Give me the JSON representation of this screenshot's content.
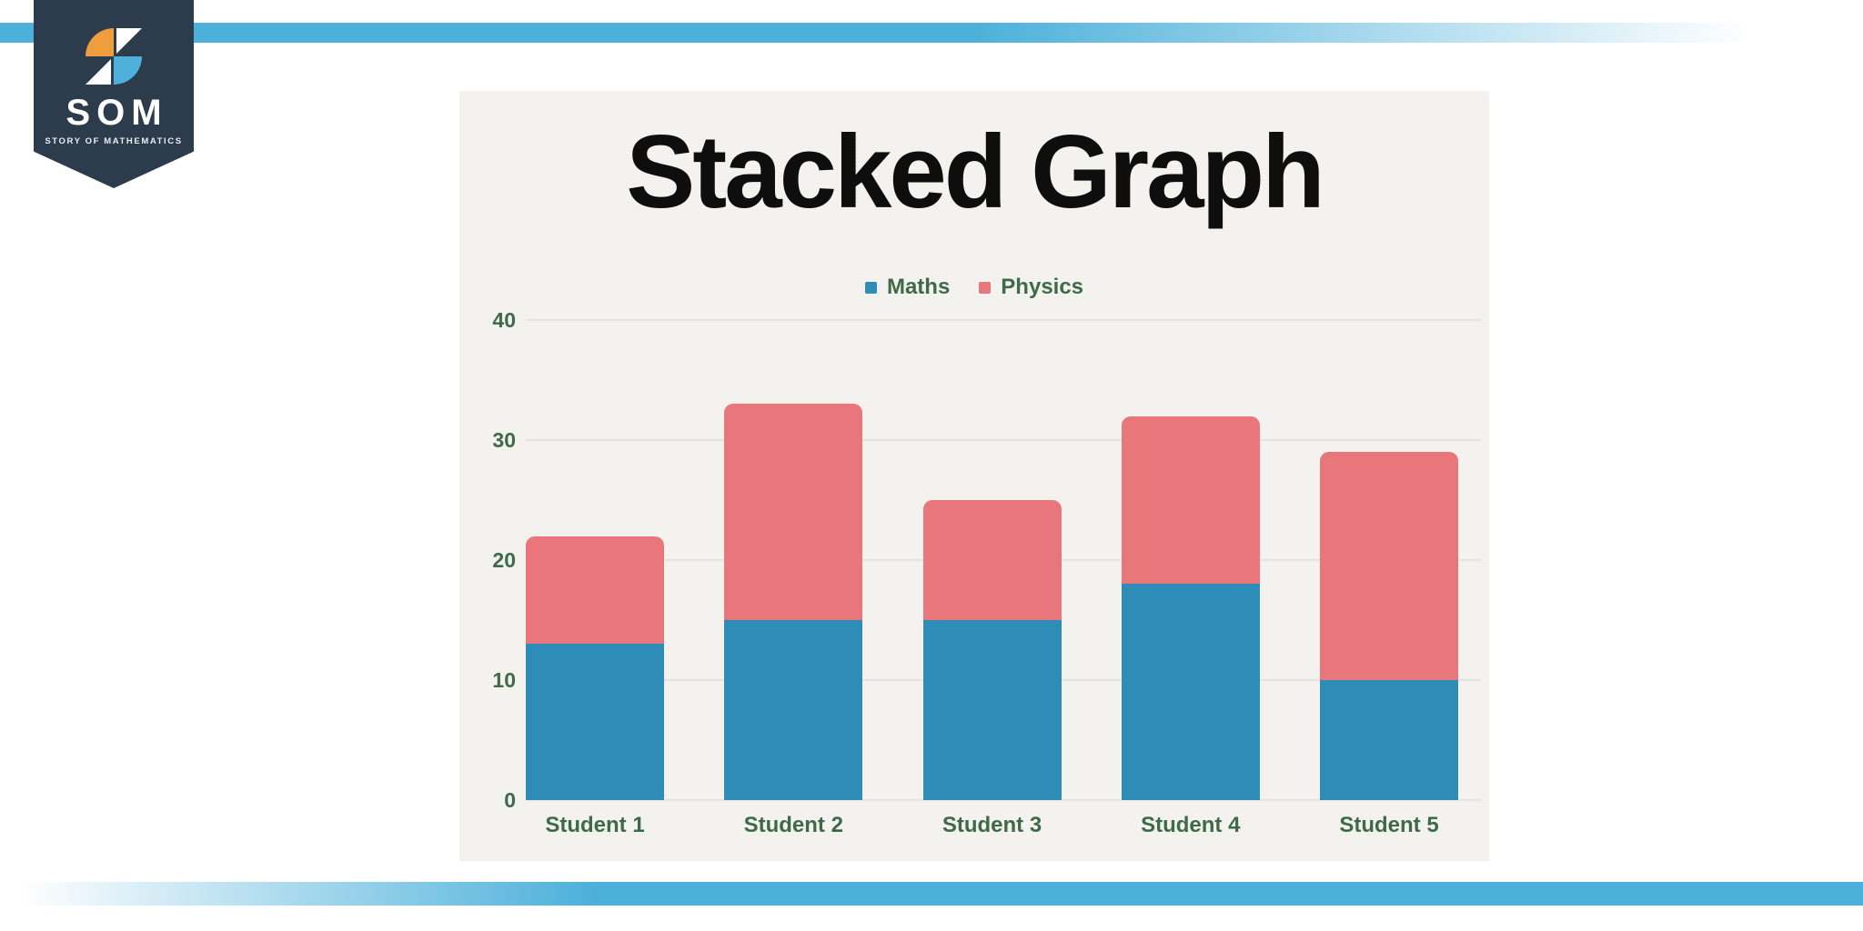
{
  "branding": {
    "logo_text": "SOM",
    "logo_subtext": "STORY OF MATHEMATICS",
    "banner_color": "#2d3c4d",
    "pinwheel_orange": "#ee9e3d",
    "pinwheel_blue": "#4fb0dc",
    "pinwheel_white": "#ffffff"
  },
  "decor": {
    "stripe_color": "#4cb0da"
  },
  "chart_data": {
    "type": "bar",
    "stacked": true,
    "title": "Stacked Graph",
    "categories": [
      "Student 1",
      "Student 2",
      "Student 3",
      "Student 4",
      "Student 5"
    ],
    "series": [
      {
        "name": "Maths",
        "color": "#2e8cb8",
        "values": [
          13,
          15,
          15,
          18,
          10
        ]
      },
      {
        "name": "Physics",
        "color": "#e8767b",
        "values": [
          9,
          18,
          10,
          14,
          19
        ]
      }
    ],
    "totals": [
      22,
      33,
      25,
      32,
      29
    ],
    "ylim": [
      0,
      40
    ],
    "yticks": [
      0,
      10,
      20,
      30,
      40
    ],
    "grid": true,
    "legend_position": "top",
    "axis_label_color": "#3f6a49",
    "plot_background": "#f4f3ef"
  }
}
